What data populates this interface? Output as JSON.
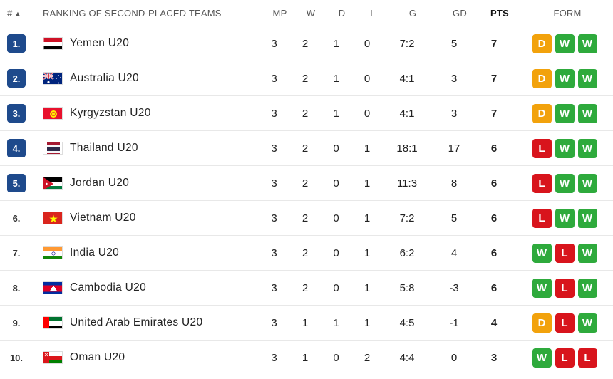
{
  "header": {
    "rank": "#",
    "team": "RANKING OF SECOND-PLACED TEAMS",
    "mp": "MP",
    "w": "W",
    "d": "D",
    "l": "L",
    "g": "G",
    "gd": "GD",
    "pts": "PTS",
    "form": "FORM"
  },
  "colors": {
    "rank_badge": "#1e4a8c",
    "W": "#2eaa3c",
    "D": "#f2a20c",
    "L": "#d8141c"
  },
  "rows": [
    {
      "rank": "1.",
      "highlight": true,
      "flag": "yemen",
      "team": "Yemen U20",
      "mp": "3",
      "w": "2",
      "d": "1",
      "l": "0",
      "g": "7:2",
      "gd": "5",
      "pts": "7",
      "form": [
        "D",
        "W",
        "W"
      ]
    },
    {
      "rank": "2.",
      "highlight": true,
      "flag": "australia",
      "team": "Australia U20",
      "mp": "3",
      "w": "2",
      "d": "1",
      "l": "0",
      "g": "4:1",
      "gd": "3",
      "pts": "7",
      "form": [
        "D",
        "W",
        "W"
      ]
    },
    {
      "rank": "3.",
      "highlight": true,
      "flag": "kyrgyzstan",
      "team": "Kyrgyzstan U20",
      "mp": "3",
      "w": "2",
      "d": "1",
      "l": "0",
      "g": "4:1",
      "gd": "3",
      "pts": "7",
      "form": [
        "D",
        "W",
        "W"
      ]
    },
    {
      "rank": "4.",
      "highlight": true,
      "flag": "thailand",
      "team": "Thailand U20",
      "mp": "3",
      "w": "2",
      "d": "0",
      "l": "1",
      "g": "18:1",
      "gd": "17",
      "pts": "6",
      "form": [
        "L",
        "W",
        "W"
      ]
    },
    {
      "rank": "5.",
      "highlight": true,
      "flag": "jordan",
      "team": "Jordan U20",
      "mp": "3",
      "w": "2",
      "d": "0",
      "l": "1",
      "g": "11:3",
      "gd": "8",
      "pts": "6",
      "form": [
        "L",
        "W",
        "W"
      ]
    },
    {
      "rank": "6.",
      "highlight": false,
      "flag": "vietnam",
      "team": "Vietnam U20",
      "mp": "3",
      "w": "2",
      "d": "0",
      "l": "1",
      "g": "7:2",
      "gd": "5",
      "pts": "6",
      "form": [
        "L",
        "W",
        "W"
      ]
    },
    {
      "rank": "7.",
      "highlight": false,
      "flag": "india",
      "team": "India U20",
      "mp": "3",
      "w": "2",
      "d": "0",
      "l": "1",
      "g": "6:2",
      "gd": "4",
      "pts": "6",
      "form": [
        "W",
        "L",
        "W"
      ]
    },
    {
      "rank": "8.",
      "highlight": false,
      "flag": "cambodia",
      "team": "Cambodia U20",
      "mp": "3",
      "w": "2",
      "d": "0",
      "l": "1",
      "g": "5:8",
      "gd": "-3",
      "pts": "6",
      "form": [
        "W",
        "L",
        "W"
      ]
    },
    {
      "rank": "9.",
      "highlight": false,
      "flag": "uae",
      "team": "United Arab Emirates U20",
      "mp": "3",
      "w": "1",
      "d": "1",
      "l": "1",
      "g": "4:5",
      "gd": "-1",
      "pts": "4",
      "form": [
        "D",
        "L",
        "W"
      ]
    },
    {
      "rank": "10.",
      "highlight": false,
      "flag": "oman",
      "team": "Oman U20",
      "mp": "3",
      "w": "1",
      "d": "0",
      "l": "2",
      "g": "4:4",
      "gd": "0",
      "pts": "3",
      "form": [
        "W",
        "L",
        "L"
      ]
    }
  ]
}
